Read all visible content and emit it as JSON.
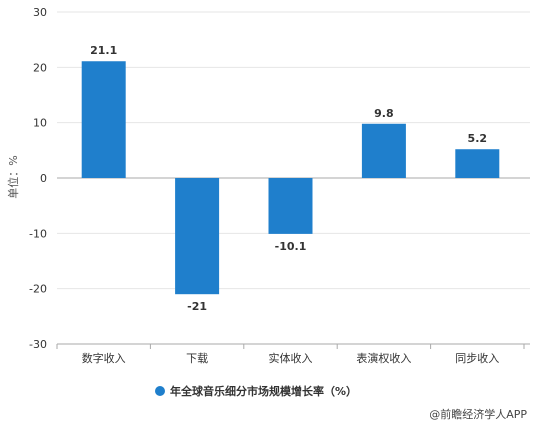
{
  "chart_data": {
    "type": "bar",
    "categories": [
      "数字收入",
      "下载",
      "实体收入",
      "表演权收入",
      "同步收入"
    ],
    "series": [
      {
        "name": "年全球音乐细分市场规模增长率（%）",
        "values": [
          21.1,
          -21,
          -10.1,
          9.8,
          5.2
        ],
        "color": "#1f7fcc"
      }
    ],
    "data_labels": [
      "21.1",
      "-21",
      "-10.1",
      "9.8",
      "5.2"
    ],
    "y_ticks": [
      "30",
      "20",
      "10",
      "0",
      "-10",
      "-20",
      "-30"
    ],
    "ylabel": "单位：%",
    "ylim": [
      -30,
      30
    ],
    "grid": true,
    "legend_position": "bottom"
  },
  "source": "@前瞻经济学人APP",
  "colors": {
    "bar": "#1f7fcc",
    "axis": "#aaaaaa",
    "grid": "#e6e6e6"
  }
}
